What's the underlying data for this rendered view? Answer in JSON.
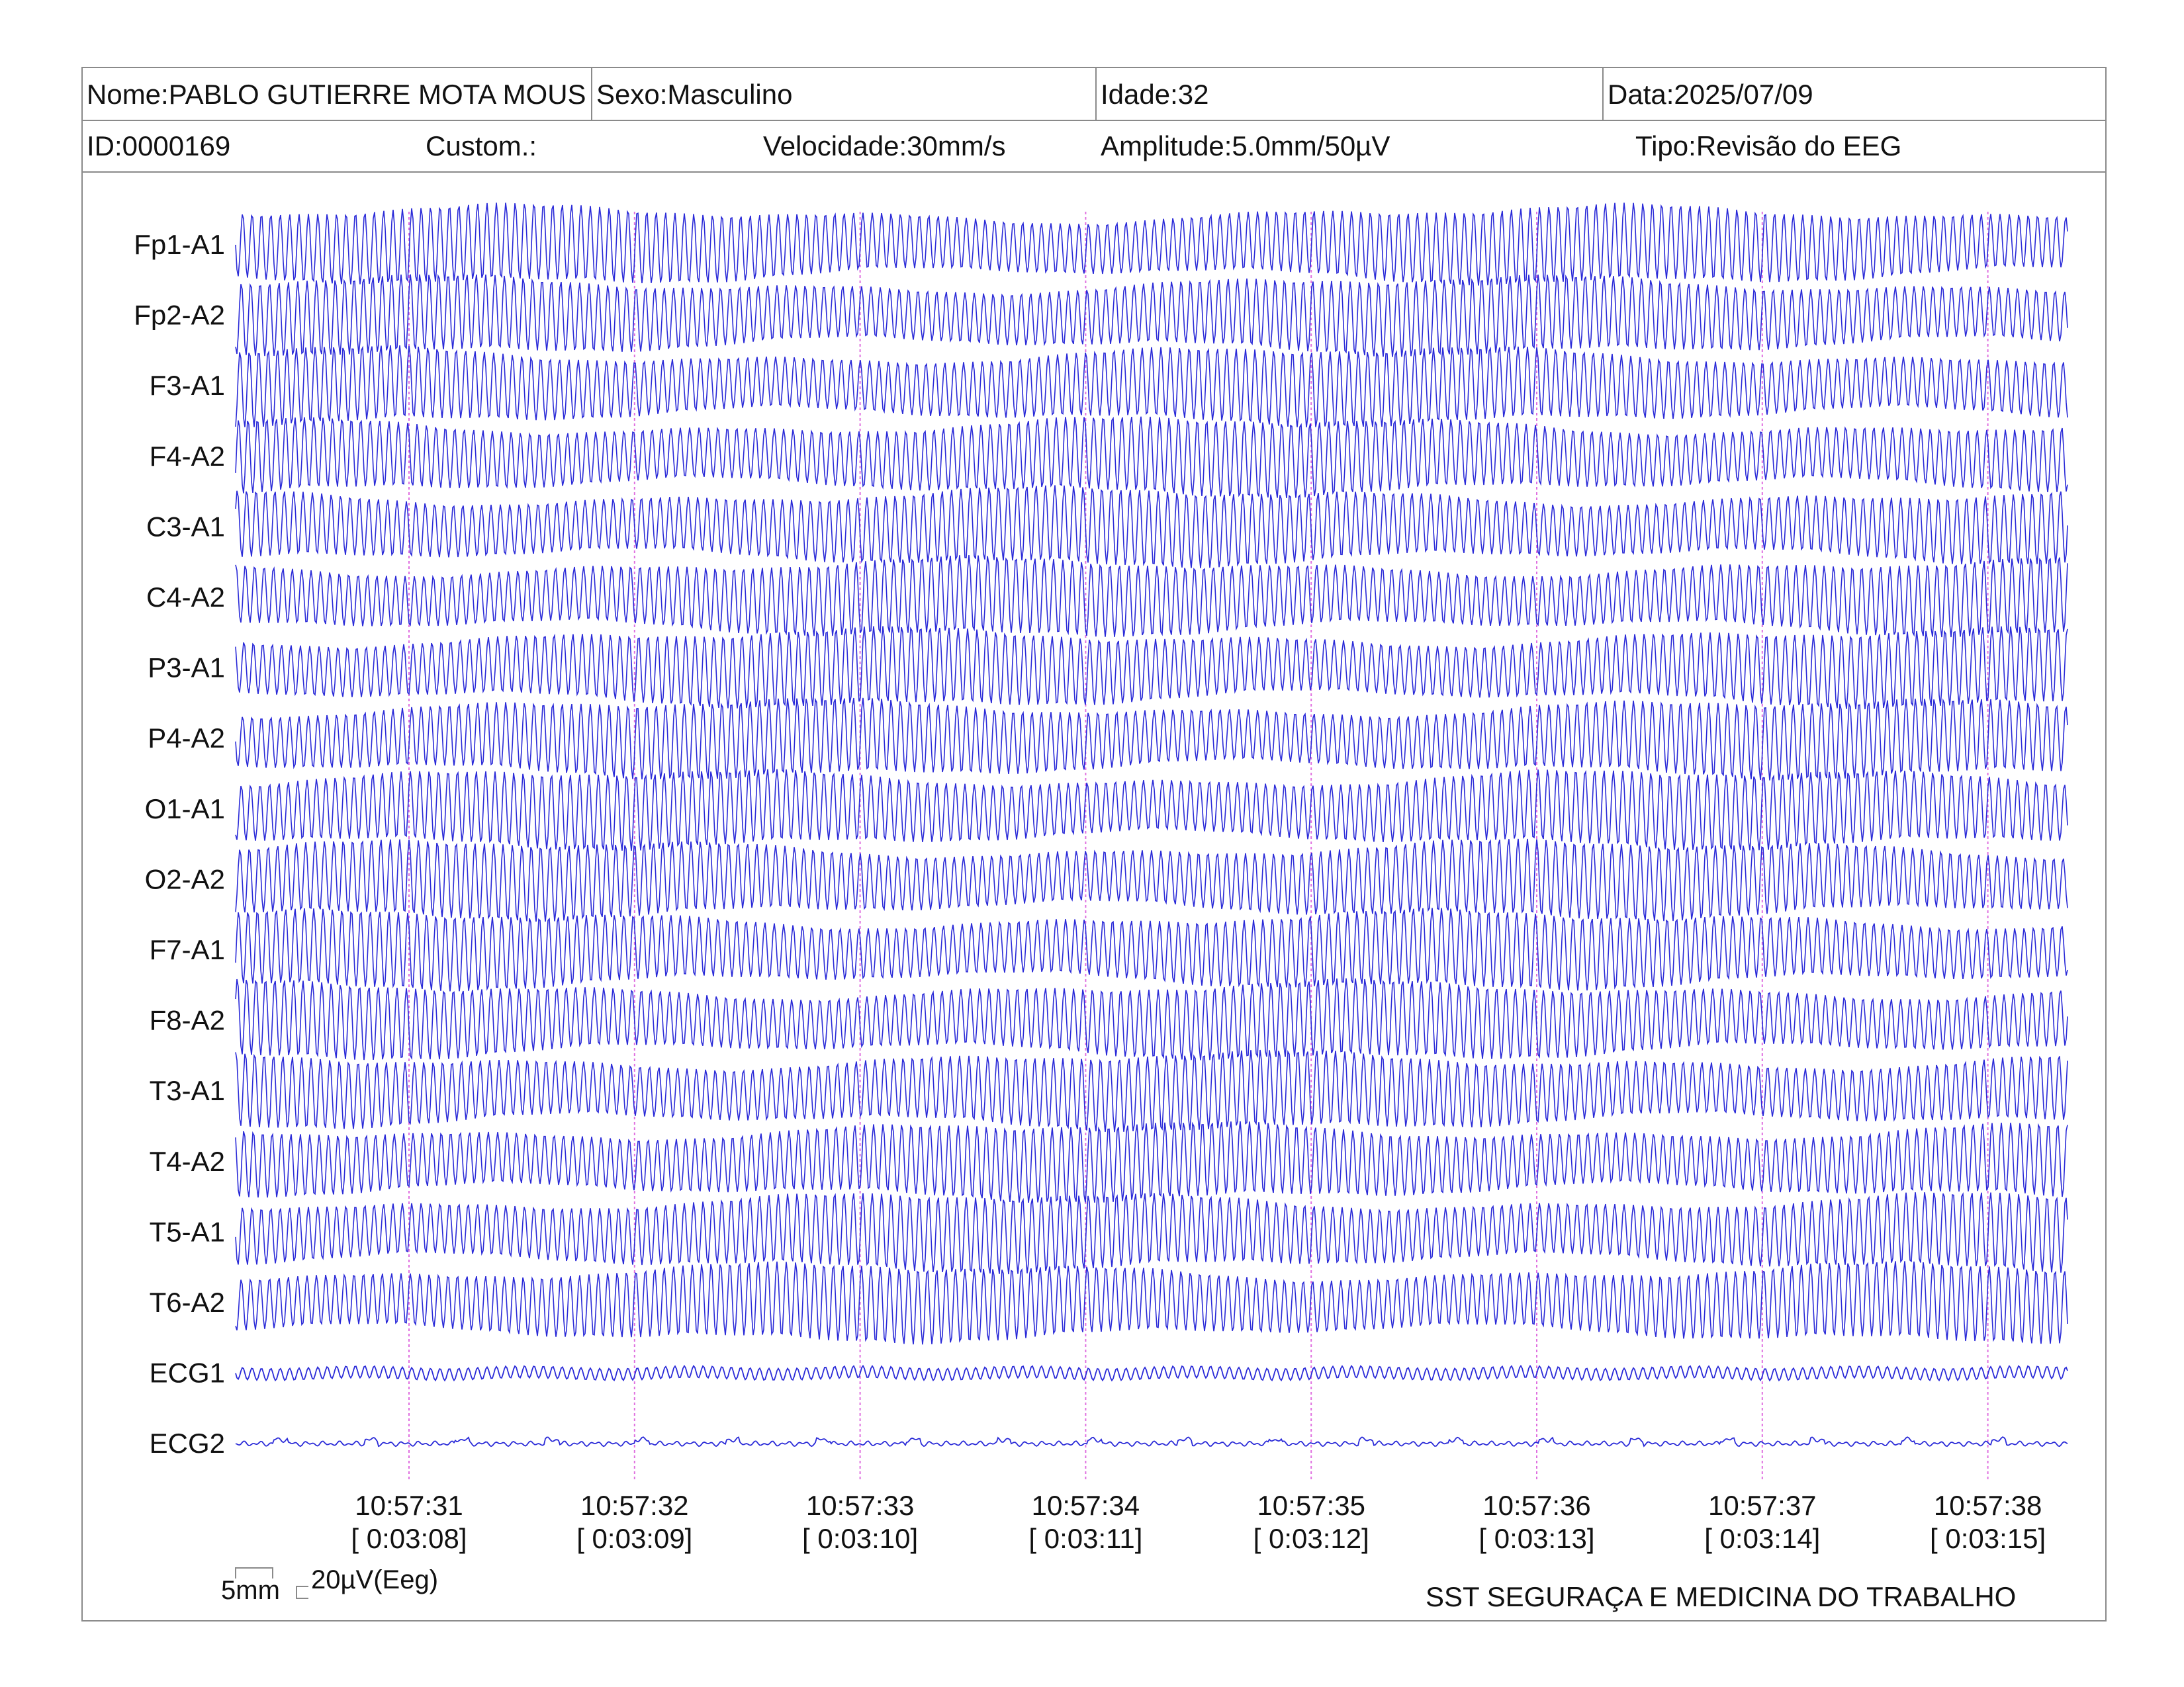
{
  "header": {
    "name": "Nome:PABLO GUTIERRE MOTA MOUS",
    "sex": "Sexo:Masculino",
    "age": "Idade:32",
    "date": "Data:2025/07/09",
    "id": "ID:0000169",
    "custom": "Custom.:",
    "speed": "Velocidade:30mm/s",
    "amplitude": "Amplitude:5.0mm/50µV",
    "type": "Tipo:Revisão do EEG"
  },
  "channels": [
    {
      "label": "Fp1-A1",
      "kind": "eeg"
    },
    {
      "label": "Fp2-A2",
      "kind": "eeg"
    },
    {
      "label": "F3-A1",
      "kind": "eeg"
    },
    {
      "label": "F4-A2",
      "kind": "eeg"
    },
    {
      "label": "C3-A1",
      "kind": "eeg"
    },
    {
      "label": "C4-A2",
      "kind": "eeg"
    },
    {
      "label": "P3-A1",
      "kind": "eeg"
    },
    {
      "label": "P4-A2",
      "kind": "eeg"
    },
    {
      "label": "O1-A1",
      "kind": "eeg"
    },
    {
      "label": "O2-A2",
      "kind": "eeg"
    },
    {
      "label": "F7-A1",
      "kind": "eeg"
    },
    {
      "label": "F8-A2",
      "kind": "eeg"
    },
    {
      "label": "T3-A1",
      "kind": "eeg"
    },
    {
      "label": "T4-A2",
      "kind": "eeg"
    },
    {
      "label": "T5-A1",
      "kind": "eeg"
    },
    {
      "label": "T6-A2",
      "kind": "eeg"
    },
    {
      "label": "ECG1",
      "kind": "ecg1"
    },
    {
      "label": "ECG2",
      "kind": "ecg2"
    }
  ],
  "time_marks": [
    {
      "clock": "10:57:31",
      "elapsed": "[ 0:03:08]"
    },
    {
      "clock": "10:57:32",
      "elapsed": "[ 0:03:09]"
    },
    {
      "clock": "10:57:33",
      "elapsed": "[ 0:03:10]"
    },
    {
      "clock": "10:57:34",
      "elapsed": "[ 0:03:11]"
    },
    {
      "clock": "10:57:35",
      "elapsed": "[ 0:03:12]"
    },
    {
      "clock": "10:57:36",
      "elapsed": "[ 0:03:13]"
    },
    {
      "clock": "10:57:37",
      "elapsed": "[ 0:03:14]"
    },
    {
      "clock": "10:57:38",
      "elapsed": "[ 0:03:15]"
    }
  ],
  "scale": {
    "time_label": "5mm",
    "amp_label": "20µV(Eeg)"
  },
  "footer": {
    "company": "SST SEGURAÇA E MEDICINA DO TRABALHO"
  },
  "colors": {
    "trace": "#2a2ad8",
    "marker": "#e070e0",
    "border": "#8a8a8a"
  }
}
